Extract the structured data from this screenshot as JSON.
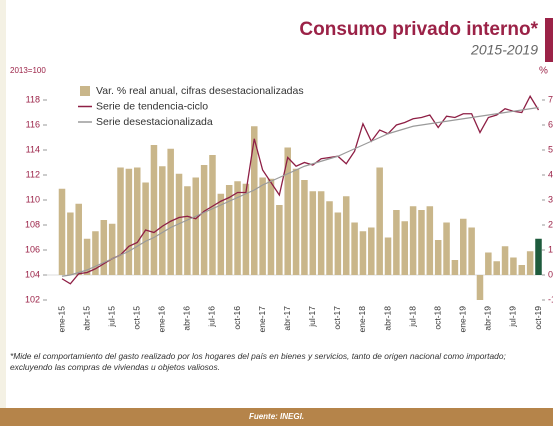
{
  "chart_data": {
    "type": "combo",
    "title": "Consumo privado interno*",
    "subtitle": "2015-2019",
    "ylabel": "2013=100",
    "y2label": "%",
    "footnote": "*Mide el comportamiento del gasto realizado por los hogares del país en bienes y servicios, tanto de origen nacional como importado; excluyendo las compras de viviendas u objetos valiosos.",
    "source": "Fuente: INEGI.",
    "categories": [
      "ene-15",
      null,
      null,
      "abr-15",
      null,
      null,
      "jul-15",
      null,
      null,
      "oct-15",
      null,
      null,
      "ene-16",
      null,
      null,
      "abr-16",
      null,
      null,
      "jul-16",
      null,
      null,
      "oct-16",
      null,
      null,
      "ene-17",
      null,
      null,
      "abr-17",
      null,
      null,
      "jul-17",
      null,
      null,
      "oct-17",
      null,
      null,
      "ene-18",
      null,
      null,
      "abr-18",
      null,
      null,
      "jul-18",
      null,
      null,
      "oct-18",
      null,
      null,
      "ene-19",
      null,
      null,
      "abr-19",
      null,
      null,
      "jul-19",
      null,
      null,
      "oct-19"
    ],
    "ylim": [
      102,
      119
    ],
    "yticks": [
      102,
      104,
      106,
      108,
      110,
      112,
      114,
      116,
      118
    ],
    "y2lim": [
      -1,
      7.5
    ],
    "y2ticks": [
      -1,
      0,
      1,
      2,
      3,
      4,
      5,
      6,
      7
    ],
    "grid": false,
    "series": [
      {
        "name": "Var. % real anual, cifras desestacionalizadas",
        "type": "bar",
        "axis": "y2",
        "color": "#c9b68a",
        "last_color": "#1e5b3d",
        "values": [
          3.45,
          2.5,
          2.85,
          1.45,
          1.75,
          2.2,
          2.05,
          4.3,
          4.25,
          4.3,
          3.7,
          5.2,
          4.35,
          5.05,
          4.05,
          3.55,
          3.9,
          4.4,
          4.8,
          3.25,
          3.6,
          3.75,
          3.65,
          5.95,
          3.9,
          3.85,
          2.8,
          5.1,
          4.25,
          3.8,
          3.35,
          3.35,
          2.95,
          2.5,
          3.15,
          2.1,
          1.75,
          1.9,
          4.3,
          1.5,
          2.6,
          2.15,
          2.75,
          2.6,
          2.75,
          1.4,
          2.1,
          0.6,
          2.25,
          1.9,
          -1.0,
          0.9,
          0.55,
          1.15,
          0.7,
          0.4,
          0.95,
          1.45
        ]
      },
      {
        "name": "Serie de tendencia-ciclo",
        "type": "line",
        "color": "#8e1f45",
        "values": [
          103.7,
          103.3,
          104.1,
          104.2,
          104.5,
          104.9,
          105.3,
          105.6,
          106.3,
          106.6,
          107.6,
          107.4,
          107.9,
          108.3,
          108.6,
          108.7,
          108.5,
          109.1,
          109.5,
          109.9,
          110.2,
          110.6,
          110.6,
          114.9,
          112.4,
          111.4,
          110.4,
          113.4,
          112.7,
          113.0,
          112.8,
          113.3,
          113.4,
          113.5,
          112.9,
          113.9,
          116.1,
          114.7,
          115.6,
          115.3,
          116.0,
          116.2,
          116.5,
          116.6,
          116.8,
          115.8,
          116.7,
          116.6,
          116.9,
          116.9,
          115.4,
          116.6,
          116.8,
          117.3,
          117.1,
          117.0,
          118.3,
          117.2
        ]
      },
      {
        "name": "Serie desestacionalizada",
        "type": "line",
        "color": "#9a9a9a",
        "values": [
          103.9,
          104.0,
          104.2,
          104.4,
          104.7,
          105.0,
          105.3,
          105.6,
          105.9,
          106.3,
          106.7,
          107.0,
          107.4,
          107.8,
          108.1,
          108.4,
          108.7,
          109.0,
          109.3,
          109.6,
          109.9,
          110.2,
          110.5,
          110.8,
          111.2,
          111.5,
          111.8,
          112.1,
          112.4,
          112.7,
          112.9,
          113.1,
          113.3,
          113.5,
          113.8,
          114.1,
          114.4,
          114.7,
          115.0,
          115.3,
          115.5,
          115.7,
          115.9,
          116.0,
          116.1,
          116.2,
          116.3,
          116.4,
          116.5,
          116.6,
          116.7,
          116.8,
          116.9,
          117.0,
          117.1,
          117.2,
          117.3,
          117.4
        ]
      }
    ]
  }
}
